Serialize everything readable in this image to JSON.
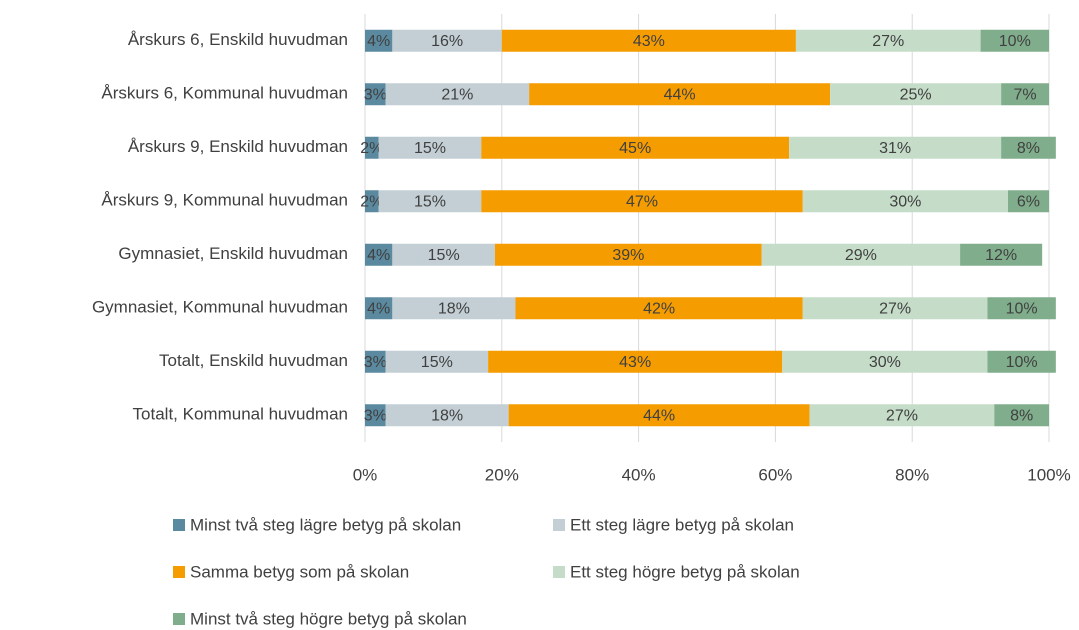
{
  "chart_data": {
    "type": "stacked_barh",
    "categories": [
      "Årskurs 6, Enskild huvudman",
      "Årskurs 6, Kommunal huvudman",
      "Årskurs 9, Enskild huvudman",
      "Årskurs 9, Kommunal huvudman",
      "Gymnasiet, Enskild huvudman",
      "Gymnasiet, Kommunal huvudman",
      "Totalt, Enskild huvudman",
      "Totalt, Kommunal huvudman"
    ],
    "series": [
      {
        "name": "Minst två steg lägre betyg på skolan",
        "color": "#5b8aa0",
        "values": [
          4,
          3,
          2,
          2,
          4,
          4,
          3,
          3
        ],
        "value_labels": [
          "4%",
          "3%",
          "2%",
          "2%",
          "4%",
          "4%",
          "3%",
          "3%"
        ]
      },
      {
        "name": "Ett steg lägre betyg på skolan",
        "color": "#c3cfd5",
        "values": [
          16,
          21,
          15,
          15,
          15,
          18,
          15,
          18
        ],
        "value_labels": [
          "16%",
          "21%",
          "15%",
          "15%",
          "15%",
          "18%",
          "15%",
          "18%"
        ]
      },
      {
        "name": "Samma betyg som på skolan",
        "color": "#f59c00",
        "values": [
          43,
          44,
          45,
          47,
          39,
          42,
          43,
          44
        ],
        "value_labels": [
          "43%",
          "44%",
          "45%",
          "47%",
          "39%",
          "42%",
          "43%",
          "44%"
        ]
      },
      {
        "name": "Ett steg högre betyg på skolan",
        "color": "#c5ddc8",
        "values": [
          27,
          25,
          31,
          30,
          29,
          27,
          30,
          27
        ],
        "value_labels": [
          "27%",
          "25%",
          "31%",
          "30%",
          "29%",
          "27%",
          "30%",
          "27%"
        ]
      },
      {
        "name": "Minst två steg högre betyg på skolan",
        "color": "#80ae8c",
        "values": [
          10,
          7,
          8,
          6,
          12,
          10,
          10,
          8
        ],
        "value_labels": [
          "10%",
          "7%",
          "8%",
          "6%",
          "12%",
          "10%",
          "10%",
          "8%"
        ]
      }
    ],
    "xlim": [
      0,
      100
    ],
    "xticks": [
      {
        "value": 0,
        "label": "0%"
      },
      {
        "value": 20,
        "label": "20%"
      },
      {
        "value": 40,
        "label": "40%"
      },
      {
        "value": 60,
        "label": "60%"
      },
      {
        "value": 80,
        "label": "80%"
      },
      {
        "value": 100,
        "label": "100%"
      }
    ],
    "grid": true
  }
}
